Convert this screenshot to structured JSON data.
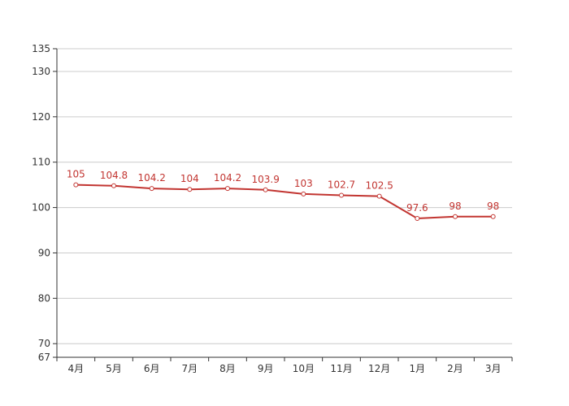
{
  "chart_data": {
    "type": "line",
    "categories": [
      "4月",
      "5月",
      "6月",
      "7月",
      "8月",
      "9月",
      "10月",
      "11月",
      "12月",
      "1月",
      "2月",
      "3月"
    ],
    "series": [
      {
        "values": [
          105,
          104.8,
          104.2,
          104,
          104.2,
          103.9,
          103,
          102.7,
          102.5,
          97.6,
          98,
          98
        ],
        "labels": [
          "105",
          "104.8",
          "104.2",
          "104",
          "104.2",
          "103.9",
          "103",
          "102.7",
          "102.5",
          "97.6",
          "98",
          "98"
        ],
        "color": "#c23531"
      }
    ],
    "ylim": [
      67,
      135
    ],
    "yticks": [
      67,
      70,
      80,
      90,
      100,
      110,
      120,
      130,
      135
    ],
    "ytick_labels": [
      "67",
      "70",
      "80",
      "90",
      "100",
      "110",
      "120",
      "130",
      "135"
    ],
    "grid": true,
    "grid_color": "#cccccc",
    "axis_color": "#333333",
    "title": "",
    "xlabel": "",
    "ylabel": ""
  }
}
